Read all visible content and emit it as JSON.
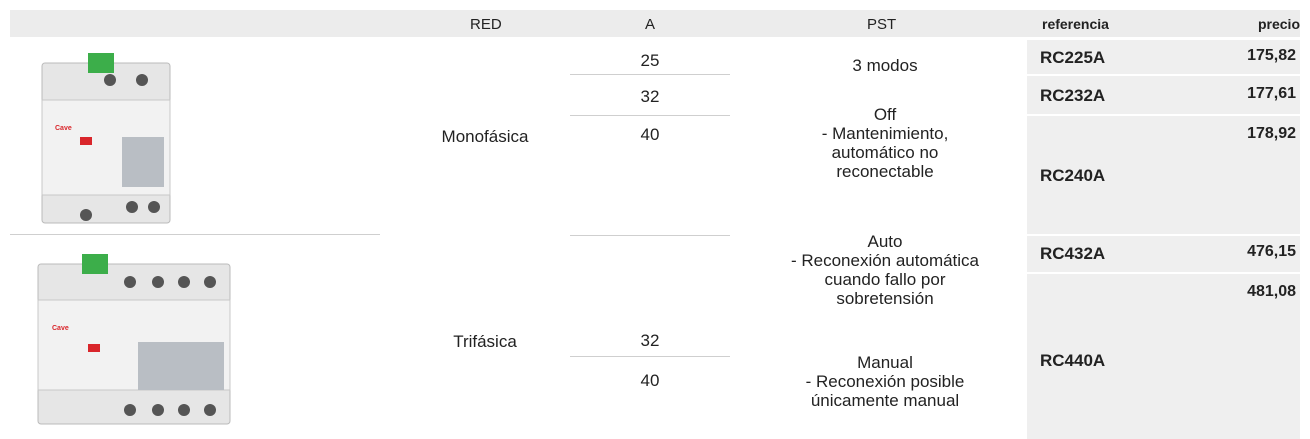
{
  "header": {
    "red": "RED",
    "a": "A",
    "pst": "PST",
    "referencia": "referencia",
    "precio": "precio"
  },
  "groups": [
    {
      "red": "Monofásica",
      "items": [
        {
          "a": 25,
          "referencia": "RC225A",
          "precio": "175,82"
        },
        {
          "a": 32,
          "referencia": "RC232A",
          "precio": "177,61"
        },
        {
          "a": 40,
          "referencia": "RC240A",
          "precio": "178,92"
        }
      ]
    },
    {
      "red": "Trifásica",
      "items": [
        {
          "a": 32,
          "referencia": "RC432A",
          "precio": "476,15"
        },
        {
          "a": 40,
          "referencia": "RC440A",
          "precio": "481,08"
        }
      ]
    }
  ],
  "pst": [
    "3 modos",
    "Off",
    "- Mantenimiento,",
    "automático no",
    "reconectable",
    "Auto",
    "- Reconexión automática",
    "cuando fallo por",
    "sobretensión",
    "Manual",
    "- Reconexión posible",
    "únicamente manual"
  ]
}
